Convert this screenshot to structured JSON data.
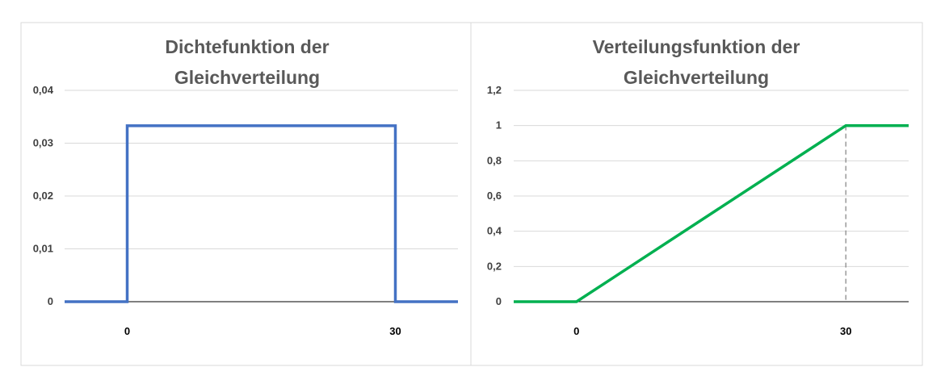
{
  "chart_data": [
    {
      "type": "line",
      "title_lines": [
        "Dichtefunktion der",
        "Gleichverteilung"
      ],
      "xlabel": "",
      "ylabel": "",
      "ylim": [
        0,
        0.04
      ],
      "yticks": [
        "0",
        "0,01",
        "0,02",
        "0,03",
        "0,04"
      ],
      "xticks": [
        {
          "x": 0,
          "label": "0"
        },
        {
          "x": 30,
          "label": "30"
        }
      ],
      "grid": true,
      "legend": "none",
      "series": [
        {
          "color": "#4472C4",
          "points": [
            {
              "x": -7,
              "y": 0
            },
            {
              "x": 0,
              "y": 0
            },
            {
              "x": 0,
              "y": 0.0333
            },
            {
              "x": 30,
              "y": 0.0333
            },
            {
              "x": 30,
              "y": 0
            },
            {
              "x": 37,
              "y": 0
            }
          ]
        }
      ]
    },
    {
      "type": "line",
      "title_lines": [
        "Verteilungsfunktion der",
        "Gleichverteilung"
      ],
      "xlabel": "",
      "ylabel": "",
      "ylim": [
        0,
        1.2
      ],
      "yticks": [
        "0",
        "0,2",
        "0,4",
        "0,6",
        "0,8",
        "1",
        "1,2"
      ],
      "xticks": [
        {
          "x": 0,
          "label": "0"
        },
        {
          "x": 30,
          "label": "30"
        }
      ],
      "grid": true,
      "legend": "none",
      "reference_line": {
        "x": 30,
        "style": "dashed",
        "color": "#808080"
      },
      "series": [
        {
          "color": "#00B050",
          "points": [
            {
              "x": -7,
              "y": 0
            },
            {
              "x": 0,
              "y": 0
            },
            {
              "x": 30,
              "y": 1
            },
            {
              "x": 37,
              "y": 1
            }
          ]
        }
      ]
    }
  ]
}
